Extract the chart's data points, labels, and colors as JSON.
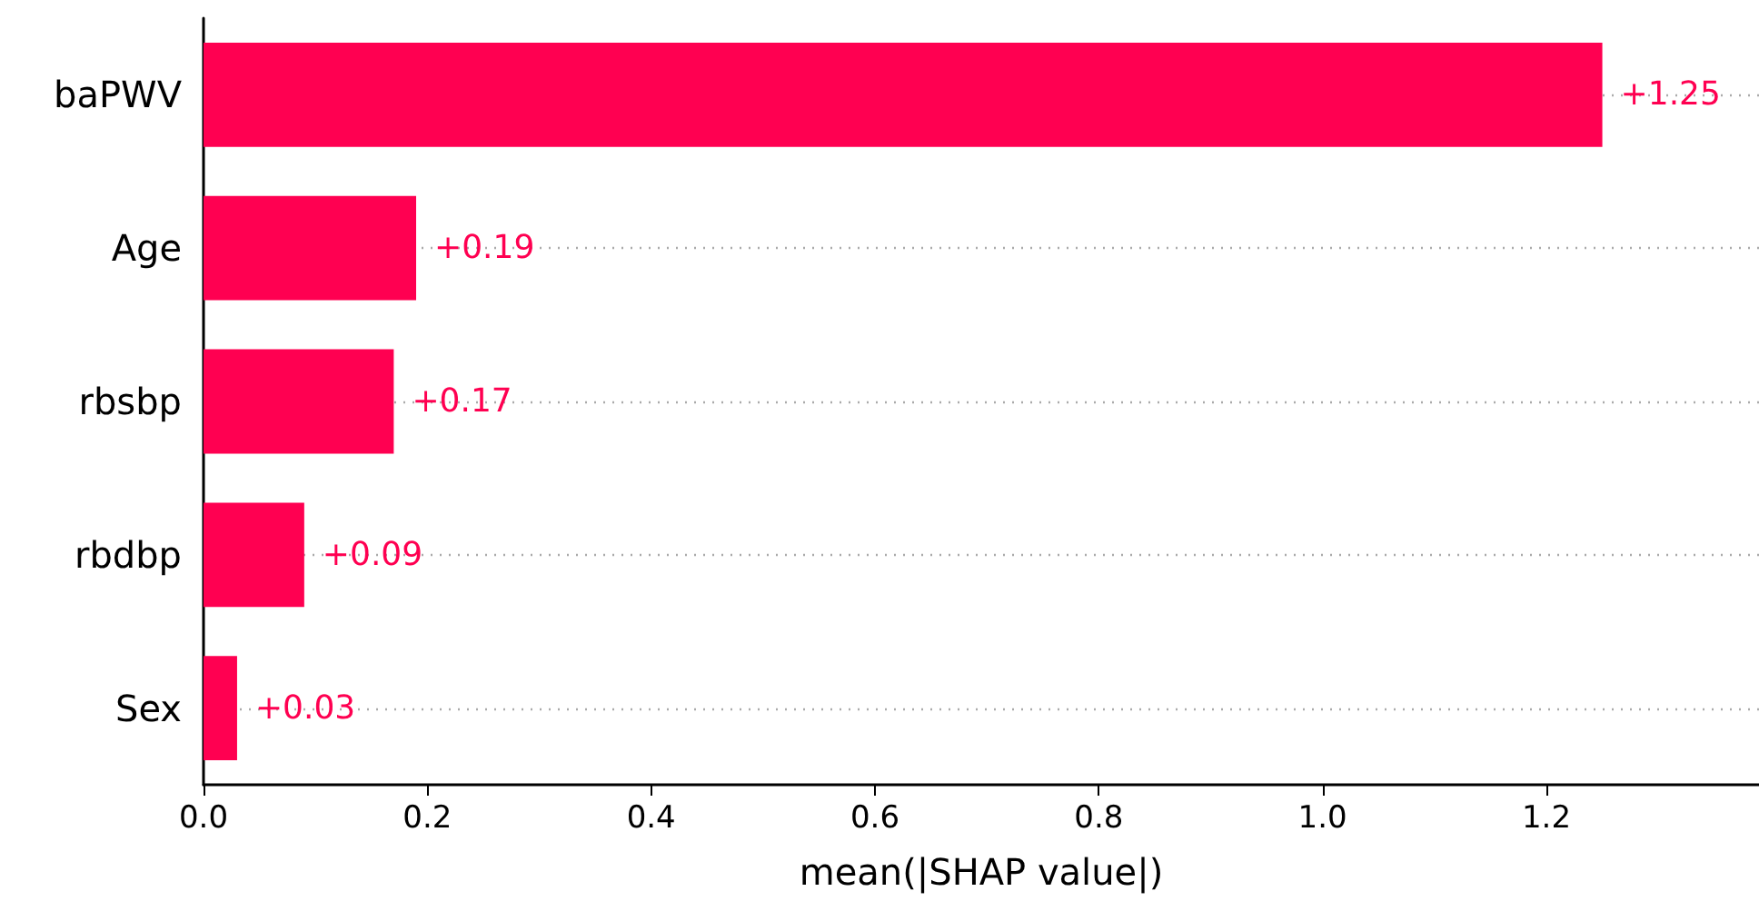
{
  "chart_data": {
    "type": "bar",
    "orientation": "horizontal",
    "categories": [
      "baPWV",
      "Age",
      "rbsbp",
      "rbdbp",
      "Sex"
    ],
    "values": [
      1.25,
      0.19,
      0.17,
      0.09,
      0.03
    ],
    "value_labels": [
      "+1.25",
      "+0.19",
      "+0.17",
      "+0.09",
      "+0.03"
    ],
    "color": "#ff0051",
    "xlabel": "mean(|SHAP value|)",
    "xlim": [
      0,
      1.39
    ],
    "xticks": [
      {
        "value": 0,
        "label": "0.0"
      },
      {
        "value": 0.2,
        "label": "0.2"
      },
      {
        "value": 0.4,
        "label": "0.4"
      },
      {
        "value": 0.6,
        "label": "0.6"
      },
      {
        "value": 0.8,
        "label": "0.8"
      },
      {
        "value": 1.0,
        "label": "1.0"
      },
      {
        "value": 1.2,
        "label": "1.2"
      }
    ],
    "grid": "y",
    "line_style": "dotted"
  }
}
